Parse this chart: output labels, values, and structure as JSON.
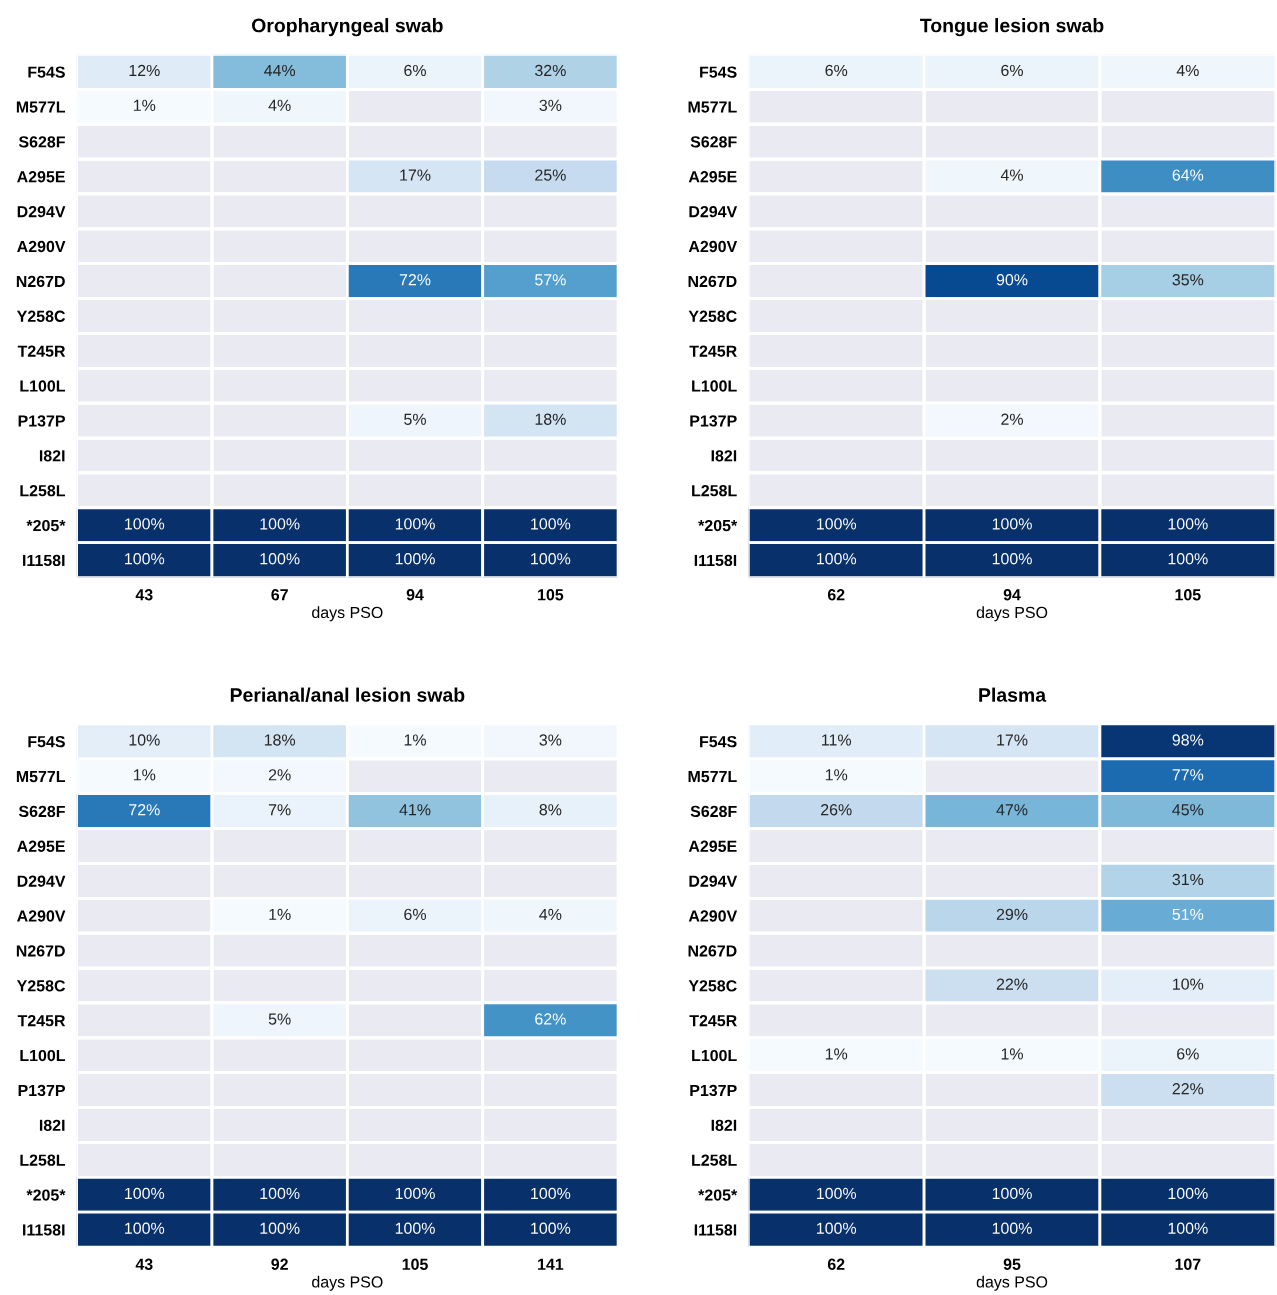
{
  "chart_data": [
    {
      "type": "heatmap",
      "title": "Oropharyngeal swab",
      "xlabel": "days PSO",
      "categories": [
        "43",
        "67",
        "94",
        "105"
      ],
      "y_categories": [
        "F54S",
        "M577L",
        "S628F",
        "A295E",
        "D294V",
        "A290V",
        "N267D",
        "Y258C",
        "T245R",
        "L100L",
        "P137P",
        "I82I",
        "L258L",
        "*205*",
        "I1158I"
      ],
      "cells": [
        [
          12,
          44,
          6,
          32
        ],
        [
          1,
          4,
          null,
          3
        ],
        [
          null,
          null,
          null,
          null
        ],
        [
          null,
          null,
          17,
          25
        ],
        [
          null,
          null,
          null,
          null
        ],
        [
          null,
          null,
          null,
          null
        ],
        [
          null,
          null,
          72,
          57
        ],
        [
          null,
          null,
          null,
          null
        ],
        [
          null,
          null,
          null,
          null
        ],
        [
          null,
          null,
          null,
          null
        ],
        [
          null,
          null,
          5,
          18
        ],
        [
          null,
          null,
          null,
          null
        ],
        [
          null,
          null,
          null,
          null
        ],
        [
          100,
          100,
          100,
          100
        ],
        [
          100,
          100,
          100,
          100
        ]
      ],
      "cell_labels": [
        [
          "12%",
          "44%",
          "6%",
          "32%"
        ],
        [
          "1%",
          "4%",
          null,
          "3%"
        ],
        [
          null,
          null,
          null,
          null
        ],
        [
          null,
          null,
          "17%",
          "25%"
        ],
        [
          null,
          null,
          null,
          null
        ],
        [
          null,
          null,
          null,
          null
        ],
        [
          null,
          null,
          "72%",
          "57%"
        ],
        [
          null,
          null,
          null,
          null
        ],
        [
          null,
          null,
          null,
          null
        ],
        [
          null,
          null,
          null,
          null
        ],
        [
          null,
          null,
          "5%",
          "18%"
        ],
        [
          null,
          null,
          null,
          null
        ],
        [
          null,
          null,
          null,
          null
        ],
        [
          "100%",
          "100%",
          "100%",
          "100%"
        ],
        [
          "100%",
          "100%",
          "100%",
          "100%"
        ]
      ]
    },
    {
      "type": "heatmap",
      "title": "Tongue lesion swab",
      "xlabel": "days PSO",
      "categories": [
        "62",
        "94",
        "105"
      ],
      "y_categories": [
        "F54S",
        "M577L",
        "S628F",
        "A295E",
        "D294V",
        "A290V",
        "N267D",
        "Y258C",
        "T245R",
        "L100L",
        "P137P",
        "I82I",
        "L258L",
        "*205*",
        "I1158I"
      ],
      "cells": [
        [
          6,
          6,
          4
        ],
        [
          null,
          null,
          null
        ],
        [
          null,
          null,
          null
        ],
        [
          null,
          4,
          64
        ],
        [
          null,
          null,
          null
        ],
        [
          null,
          null,
          null
        ],
        [
          null,
          90,
          35
        ],
        [
          null,
          null,
          null
        ],
        [
          null,
          null,
          null
        ],
        [
          null,
          null,
          null
        ],
        [
          null,
          2,
          null
        ],
        [
          null,
          null,
          null
        ],
        [
          null,
          null,
          null
        ],
        [
          100,
          100,
          100
        ],
        [
          100,
          100,
          100
        ]
      ],
      "cell_labels": [
        [
          "6%",
          "6%",
          "4%"
        ],
        [
          null,
          null,
          null
        ],
        [
          null,
          null,
          null
        ],
        [
          null,
          "4%",
          "64%"
        ],
        [
          null,
          null,
          null
        ],
        [
          null,
          null,
          null
        ],
        [
          null,
          "90%",
          "35%"
        ],
        [
          null,
          null,
          null
        ],
        [
          null,
          null,
          null
        ],
        [
          null,
          null,
          null
        ],
        [
          null,
          "2%",
          null
        ],
        [
          null,
          null,
          null
        ],
        [
          null,
          null,
          null
        ],
        [
          "100%",
          "100%",
          "100%"
        ],
        [
          "100%",
          "100%",
          "100%"
        ]
      ]
    },
    {
      "type": "heatmap",
      "title": "Perianal/anal lesion swab",
      "xlabel": "days PSO",
      "categories": [
        "43",
        "92",
        "105",
        "141"
      ],
      "y_categories": [
        "F54S",
        "M577L",
        "S628F",
        "A295E",
        "D294V",
        "A290V",
        "N267D",
        "Y258C",
        "T245R",
        "L100L",
        "P137P",
        "I82I",
        "L258L",
        "*205*",
        "I1158I"
      ],
      "cells": [
        [
          10,
          18,
          1,
          3
        ],
        [
          1,
          2,
          null,
          null
        ],
        [
          72,
          7,
          41,
          8
        ],
        [
          null,
          null,
          null,
          null
        ],
        [
          null,
          null,
          null,
          null
        ],
        [
          null,
          1,
          6,
          4
        ],
        [
          null,
          null,
          null,
          null
        ],
        [
          null,
          null,
          null,
          null
        ],
        [
          null,
          5,
          null,
          62
        ],
        [
          null,
          null,
          null,
          null
        ],
        [
          null,
          null,
          null,
          null
        ],
        [
          null,
          null,
          null,
          null
        ],
        [
          null,
          null,
          null,
          null
        ],
        [
          100,
          100,
          100,
          100
        ],
        [
          100,
          100,
          100,
          100
        ]
      ],
      "cell_labels": [
        [
          "10%",
          "18%",
          "1%",
          "3%"
        ],
        [
          "1%",
          "2%",
          null,
          null
        ],
        [
          "72%",
          "7%",
          "41%",
          "8%"
        ],
        [
          null,
          null,
          null,
          null
        ],
        [
          null,
          null,
          null,
          null
        ],
        [
          null,
          "1%",
          "6%",
          "4%"
        ],
        [
          null,
          null,
          null,
          null
        ],
        [
          null,
          null,
          null,
          null
        ],
        [
          null,
          "5%",
          null,
          "62%"
        ],
        [
          null,
          null,
          null,
          null
        ],
        [
          null,
          null,
          null,
          null
        ],
        [
          null,
          null,
          null,
          null
        ],
        [
          null,
          null,
          null,
          null
        ],
        [
          "100%",
          "100%",
          "100%",
          "100%"
        ],
        [
          "100%",
          "100%",
          "100%",
          "100%"
        ]
      ]
    },
    {
      "type": "heatmap",
      "title": "Plasma",
      "xlabel": "days PSO",
      "categories": [
        "62",
        "95",
        "107"
      ],
      "y_categories": [
        "F54S",
        "M577L",
        "S628F",
        "A295E",
        "D294V",
        "A290V",
        "N267D",
        "Y258C",
        "T245R",
        "L100L",
        "P137P",
        "I82I",
        "L258L",
        "*205*",
        "I1158I"
      ],
      "cells": [
        [
          11,
          17,
          98
        ],
        [
          1,
          null,
          77
        ],
        [
          26,
          47,
          45
        ],
        [
          null,
          null,
          null
        ],
        [
          null,
          null,
          31
        ],
        [
          null,
          29,
          51
        ],
        [
          null,
          null,
          null
        ],
        [
          null,
          22,
          10
        ],
        [
          null,
          null,
          null
        ],
        [
          1,
          1,
          6
        ],
        [
          null,
          null,
          22
        ],
        [
          null,
          null,
          null
        ],
        [
          null,
          null,
          null
        ],
        [
          100,
          100,
          100
        ],
        [
          100,
          100,
          100
        ]
      ],
      "cell_labels": [
        [
          "11%",
          "17%",
          "98%"
        ],
        [
          "1%",
          null,
          "77%"
        ],
        [
          "26%",
          "47%",
          "45%"
        ],
        [
          null,
          null,
          null
        ],
        [
          null,
          null,
          "31%"
        ],
        [
          null,
          "29%",
          "51%"
        ],
        [
          null,
          null,
          null
        ],
        [
          null,
          "22%",
          "10%"
        ],
        [
          null,
          null,
          null
        ],
        [
          "1%",
          "1%",
          "6%"
        ],
        [
          null,
          null,
          "22%"
        ],
        [
          null,
          null,
          null
        ],
        [
          null,
          null,
          null
        ],
        [
          "100%",
          "100%",
          "100%"
        ],
        [
          "100%",
          "100%",
          "100%"
        ]
      ]
    }
  ]
}
